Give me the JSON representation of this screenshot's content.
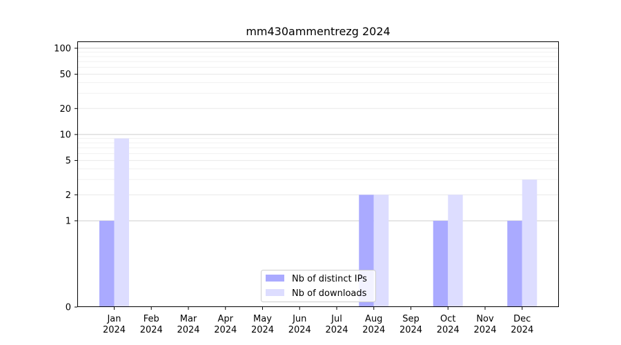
{
  "chart_data": {
    "type": "bar",
    "title": "mm430ammentrezg 2024",
    "xlabel": "",
    "ylabel": "",
    "yscale": "symlog",
    "ylim": [
      0,
      120
    ],
    "yticks": [
      0,
      1,
      2,
      5,
      10,
      20,
      50,
      100
    ],
    "categories": [
      [
        "Jan",
        "2024"
      ],
      [
        "Feb",
        "2024"
      ],
      [
        "Mar",
        "2024"
      ],
      [
        "Apr",
        "2024"
      ],
      [
        "May",
        "2024"
      ],
      [
        "Jun",
        "2024"
      ],
      [
        "Jul",
        "2024"
      ],
      [
        "Aug",
        "2024"
      ],
      [
        "Sep",
        "2024"
      ],
      [
        "Oct",
        "2024"
      ],
      [
        "Nov",
        "2024"
      ],
      [
        "Dec",
        "2024"
      ]
    ],
    "series": [
      {
        "name": "Nb of distinct IPs",
        "color": "#aaaaff",
        "values": [
          1,
          0,
          0,
          0,
          0,
          0,
          0,
          2,
          0,
          1,
          0,
          1
        ]
      },
      {
        "name": "Nb of downloads",
        "color": "#ddddff",
        "values": [
          9,
          0,
          0,
          0,
          0,
          0,
          0,
          2,
          0,
          2,
          0,
          3
        ]
      }
    ],
    "grid": true,
    "legend_position": "bottom-center"
  }
}
